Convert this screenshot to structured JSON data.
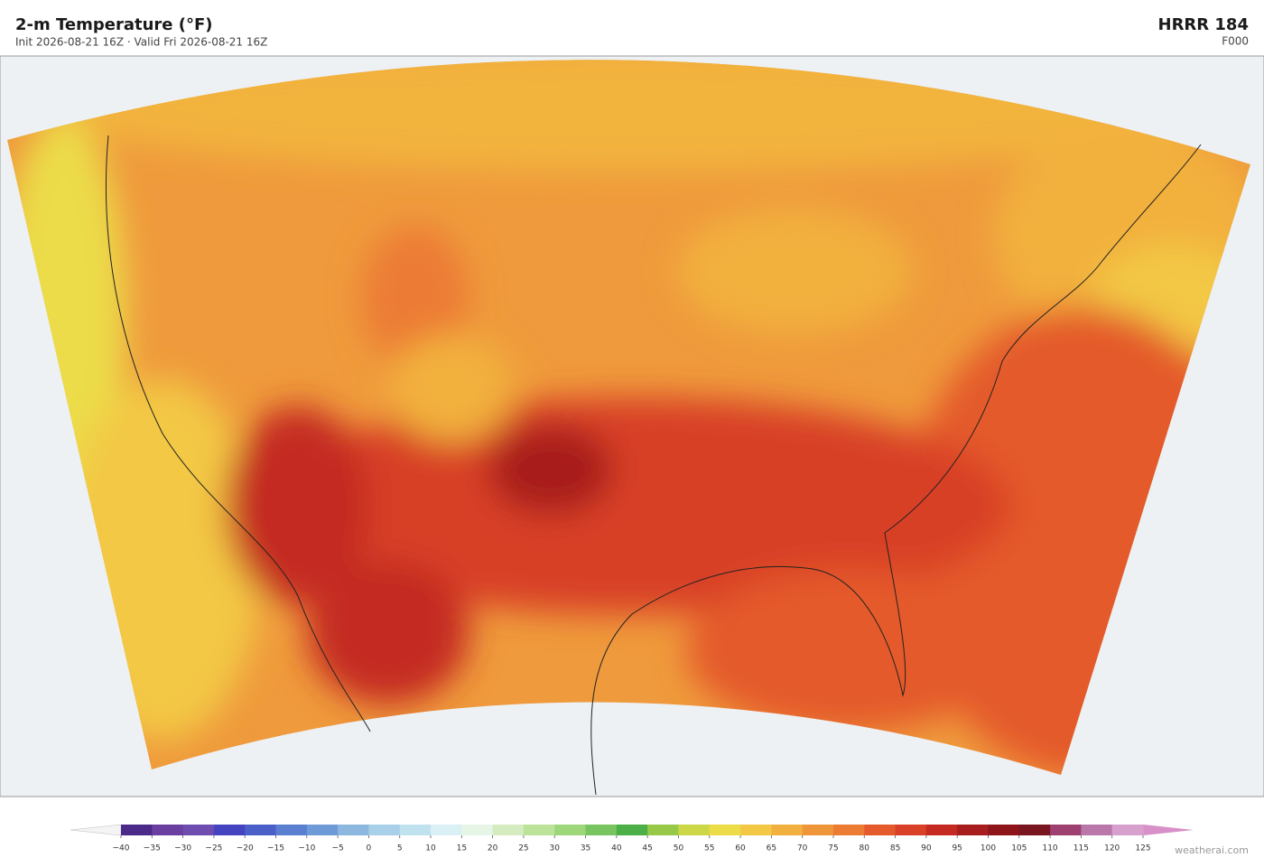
{
  "header": {
    "title": "2-m Temperature  (°F)",
    "subtitle": "Init 2026-08-21 16Z  ·  Valid Fri 2026-08-21 16Z",
    "model": "HRRR  184",
    "forecast_hour": "F000"
  },
  "colorbar": {
    "ticks": [
      {
        "value": -40,
        "label": "−40"
      },
      {
        "value": -35,
        "label": "−35"
      },
      {
        "value": -30,
        "label": "−30"
      },
      {
        "value": -25,
        "label": "−25"
      },
      {
        "value": -20,
        "label": "−20"
      },
      {
        "value": -15,
        "label": "−15"
      },
      {
        "value": -10,
        "label": "−10"
      },
      {
        "value": -5,
        "label": "−5"
      },
      0,
      5,
      10,
      15,
      20,
      25,
      30,
      35,
      40,
      45,
      50,
      55,
      60,
      65,
      70,
      75,
      80,
      85,
      90,
      95,
      100,
      105,
      110,
      115,
      120,
      125
    ],
    "colors": [
      "#4b2a8a",
      "#6a3fa0",
      "#6f4db0",
      "#4444c0",
      "#4b5fc8",
      "#5a7fd0",
      "#6f9ad8",
      "#8cb8e0",
      "#a8d0e8",
      "#c0e2ef",
      "#daf0f4",
      "#e6f5e6",
      "#d4ecc0",
      "#bde29a",
      "#9ed67a",
      "#78c460",
      "#4caf48",
      "#98c848",
      "#cdd848",
      "#ecdc48",
      "#f3c844",
      "#f2b03e",
      "#f0963a",
      "#ec7c34",
      "#e45a2c",
      "#d84028",
      "#c42a22",
      "#a81e1e",
      "#8e161a",
      "#7a1620",
      "#9e4070",
      "#ba78aa",
      "#d8a0cc"
    ],
    "under_color": "#f4f4f4",
    "over_color": "#d890c8"
  },
  "footer": {
    "credit": "weatherai.com"
  }
}
